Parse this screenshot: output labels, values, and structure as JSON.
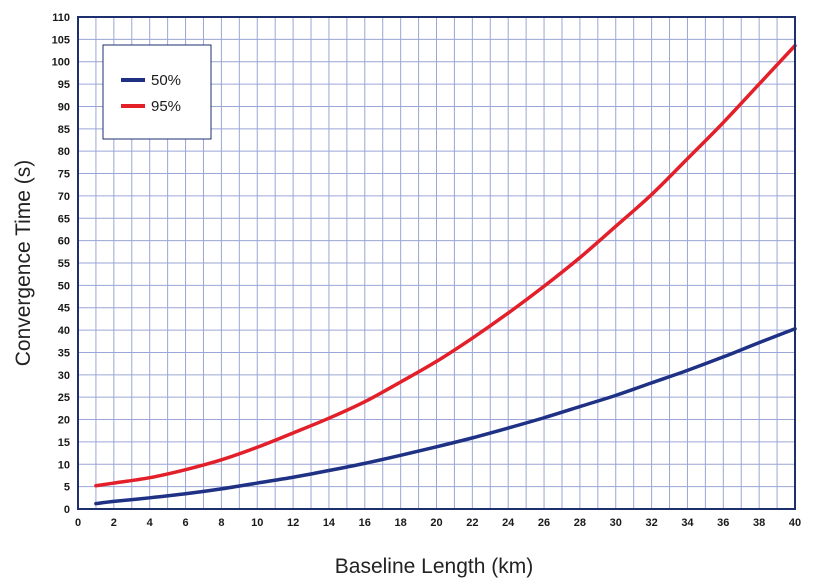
{
  "chart_data": {
    "type": "line",
    "title": "",
    "xlabel": "Baseline Length (km)",
    "ylabel": "Convergence Time (s)",
    "xlim": [
      0,
      40
    ],
    "ylim": [
      0,
      110
    ],
    "x_ticks": [
      0,
      2,
      4,
      6,
      8,
      10,
      12,
      14,
      16,
      18,
      20,
      22,
      24,
      26,
      28,
      30,
      32,
      34,
      36,
      38,
      40
    ],
    "x_tick_labels": [
      "0",
      "2",
      "4",
      "6",
      "8",
      "10",
      "12",
      "14",
      "16",
      "18",
      "20",
      "22",
      "24",
      "26",
      "28",
      "30",
      "32",
      "34",
      "36",
      "38",
      "40"
    ],
    "y_ticks": [
      0,
      5,
      10,
      15,
      20,
      25,
      30,
      35,
      40,
      45,
      50,
      55,
      60,
      65,
      70,
      75,
      80,
      85,
      90,
      95,
      100,
      105,
      110
    ],
    "y_tick_labels": [
      "0",
      "5",
      "10",
      "15",
      "20",
      "25",
      "30",
      "35",
      "40",
      "45",
      "50",
      "55",
      "60",
      "65",
      "70",
      "75",
      "80",
      "85",
      "90",
      "95",
      "100",
      "105",
      "110"
    ],
    "grid": true,
    "legend_position": "top-left",
    "colors": {
      "grid": "#9aa6d6",
      "axes": "#1e2f6e",
      "series_50": "#1f3185",
      "series_95": "#e3202a"
    },
    "series": [
      {
        "name": "50%",
        "color": "#1f3185",
        "x": [
          1,
          2,
          4,
          6,
          8,
          10,
          12,
          14,
          16,
          18,
          20,
          22,
          24,
          26,
          28,
          30,
          32,
          34,
          36,
          38,
          40
        ],
        "y": [
          1.2,
          1.7,
          2.5,
          3.4,
          4.5,
          5.8,
          7.1,
          8.6,
          10.2,
          12.0,
          13.9,
          15.9,
          18.1,
          20.4,
          22.9,
          25.4,
          28.2,
          31.0,
          34.0,
          37.2,
          40.3
        ]
      },
      {
        "name": "95%",
        "color": "#e3202a",
        "x": [
          1,
          2,
          4,
          6,
          8,
          10,
          12,
          14,
          16,
          18,
          20,
          22,
          24,
          26,
          28,
          30,
          32,
          34,
          36,
          38,
          40
        ],
        "y": [
          5.2,
          5.8,
          7.0,
          8.8,
          11.0,
          13.8,
          17.0,
          20.3,
          24.0,
          28.4,
          33.0,
          38.2,
          43.8,
          49.8,
          56.2,
          63.2,
          70.3,
          78.3,
          86.4,
          95.0,
          103.6
        ]
      }
    ]
  }
}
